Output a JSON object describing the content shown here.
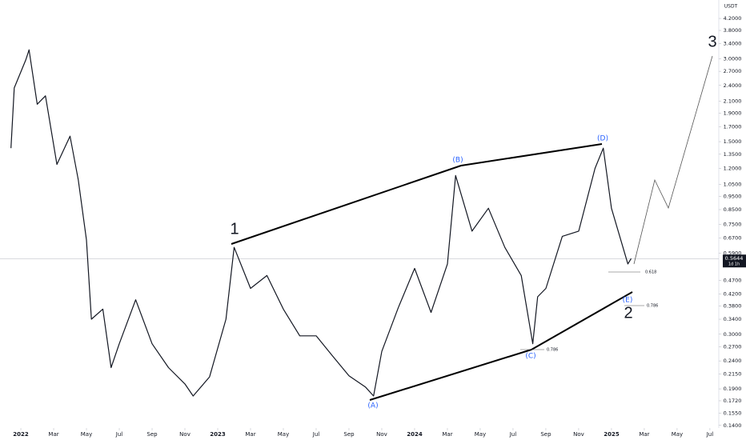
{
  "chart_data": {
    "type": "line",
    "currency": "USDT",
    "log_scale": true,
    "color": "#131722",
    "x": [
      -0.6,
      -0.4,
      0.3,
      0.5,
      1.0,
      1.5,
      2.2,
      3.0,
      3.5,
      4.0,
      4.3,
      5.0,
      5.5,
      6.0,
      7.0,
      8.0,
      9.0,
      10.0,
      10.5,
      11.5,
      12.5,
      13.0,
      14.0,
      15.0,
      16.0,
      17.0,
      18.0,
      19.0,
      20.0,
      21.0,
      21.5,
      22.0,
      23.0,
      24.0,
      25.0,
      26.0,
      26.5,
      27.5,
      28.5,
      29.5,
      30.5,
      31.2,
      31.5,
      32.0,
      33.0,
      34.0,
      35.0,
      35.5,
      36.0,
      37.0,
      37.2
    ],
    "values": [
      1.42,
      2.35,
      2.97,
      3.23,
      2.05,
      2.2,
      1.24,
      1.57,
      1.09,
      0.66,
      0.34,
      0.37,
      0.227,
      0.277,
      0.4,
      0.277,
      0.227,
      0.198,
      0.179,
      0.21,
      0.34,
      0.62,
      0.44,
      0.49,
      0.37,
      0.296,
      0.296,
      0.25,
      0.212,
      0.193,
      0.179,
      0.26,
      0.374,
      0.52,
      0.36,
      0.54,
      1.13,
      0.71,
      0.86,
      0.62,
      0.49,
      0.277,
      0.41,
      0.44,
      0.68,
      0.71,
      1.2,
      1.42,
      0.86,
      0.54,
      0.5644
    ],
    "xlim": [
      -1.27,
      42.54
    ],
    "xticks": [
      {
        "value": 0,
        "label": "2022"
      },
      {
        "value": 2,
        "label": "Mar"
      },
      {
        "value": 4,
        "label": "May"
      },
      {
        "value": 6,
        "label": "Jul"
      },
      {
        "value": 8,
        "label": "Sep"
      },
      {
        "value": 10,
        "label": "Nov"
      },
      {
        "value": 12,
        "label": "2023"
      },
      {
        "value": 14,
        "label": "Mar"
      },
      {
        "value": 16,
        "label": "May"
      },
      {
        "value": 18,
        "label": "Jul"
      },
      {
        "value": 20,
        "label": "Sep"
      },
      {
        "value": 22,
        "label": "Nov"
      },
      {
        "value": 24,
        "label": "2024"
      },
      {
        "value": 26,
        "label": "Mar"
      },
      {
        "value": 28,
        "label": "May"
      },
      {
        "value": 30,
        "label": "Jul"
      },
      {
        "value": 32,
        "label": "Sep"
      },
      {
        "value": 34,
        "label": "Nov"
      },
      {
        "value": 36,
        "label": "2025"
      },
      {
        "value": 38,
        "label": "Mar"
      },
      {
        "value": 40,
        "label": "May"
      },
      {
        "value": 42,
        "label": "Jul"
      }
    ],
    "ylim": [
      0.137,
      4.9
    ],
    "yticks": [
      {
        "value": 4.2,
        "label": "4.2000"
      },
      {
        "value": 3.8,
        "label": "3.8000"
      },
      {
        "value": 3.4,
        "label": "3.4000"
      },
      {
        "value": 3.0,
        "label": "3.0000"
      },
      {
        "value": 2.7,
        "label": "2.7000"
      },
      {
        "value": 2.4,
        "label": "2.4000"
      },
      {
        "value": 2.1,
        "label": "2.1000"
      },
      {
        "value": 1.9,
        "label": "1.9000"
      },
      {
        "value": 1.7,
        "label": "1.7000"
      },
      {
        "value": 1.5,
        "label": "1.5000"
      },
      {
        "value": 1.35,
        "label": "1.3500"
      },
      {
        "value": 1.2,
        "label": "1.2000"
      },
      {
        "value": 1.05,
        "label": "1.0500"
      },
      {
        "value": 0.95,
        "label": "0.9500"
      },
      {
        "value": 0.85,
        "label": "0.8500"
      },
      {
        "value": 0.75,
        "label": "0.7500"
      },
      {
        "value": 0.67,
        "label": "0.6700"
      },
      {
        "value": 0.59,
        "label": "0.5900"
      },
      {
        "value": 0.47,
        "label": "0.4700"
      },
      {
        "value": 0.42,
        "label": "0.4200"
      },
      {
        "value": 0.38,
        "label": "0.3800"
      },
      {
        "value": 0.34,
        "label": "0.3400"
      },
      {
        "value": 0.3,
        "label": "0.3000"
      },
      {
        "value": 0.27,
        "label": "0.2700"
      },
      {
        "value": 0.24,
        "label": "0.2400"
      },
      {
        "value": 0.215,
        "label": "0.2150"
      },
      {
        "value": 0.19,
        "label": "0.1900"
      },
      {
        "value": 0.172,
        "label": "0.1720"
      },
      {
        "value": 0.155,
        "label": "0.1550"
      },
      {
        "value": 0.14,
        "label": "0.1400"
      }
    ],
    "last_price": {
      "value": 0.5644,
      "label": "0.5644"
    },
    "countdown": "1d 1h",
    "wave_labels": [
      "1",
      "2",
      "3"
    ],
    "correction_labels": [
      "(A)",
      "(B)",
      "(C)",
      "(D)",
      "(E)"
    ],
    "fib_labels": [
      "0.618",
      "0.786",
      "0.786"
    ]
  }
}
